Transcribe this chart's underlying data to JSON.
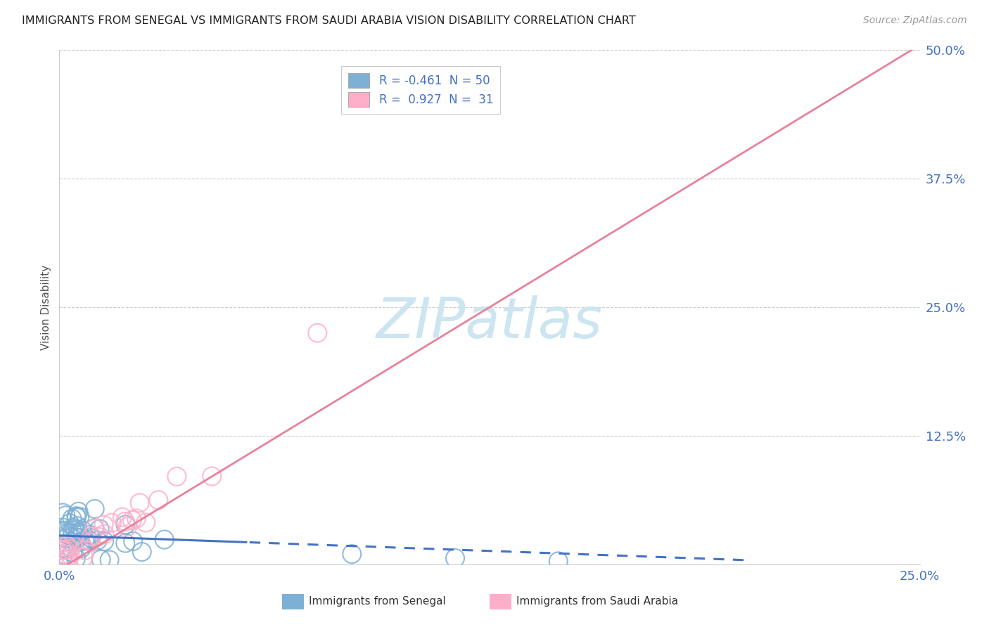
{
  "title": "IMMIGRANTS FROM SENEGAL VS IMMIGRANTS FROM SAUDI ARABIA VISION DISABILITY CORRELATION CHART",
  "source": "Source: ZipAtlas.com",
  "ylabel": "Vision Disability",
  "xlim": [
    0.0,
    0.25
  ],
  "ylim": [
    0.0,
    0.5
  ],
  "xticks": [
    0.0,
    0.05,
    0.1,
    0.15,
    0.2,
    0.25
  ],
  "yticks": [
    0.0,
    0.125,
    0.25,
    0.375,
    0.5
  ],
  "ytick_labels": [
    "",
    "12.5%",
    "25.0%",
    "37.5%",
    "50.0%"
  ],
  "xtick_labels": [
    "0.0%",
    "",
    "",
    "",
    "",
    "25.0%"
  ],
  "color_senegal": "#7eb0d5",
  "color_saudi": "#ffaec9",
  "color_senegal_line": "#4472c4",
  "color_saudi_line": "#e8819a",
  "R_senegal": -0.461,
  "N_senegal": 50,
  "R_saudi": 0.927,
  "N_saudi": 31,
  "watermark": "ZIPatlas",
  "watermark_color": "#cce5f0",
  "grid_color": "#cccccc",
  "background_color": "#ffffff",
  "tick_color": "#4472c4",
  "title_fontsize": 11.5,
  "legend_fontsize": 12,
  "axis_label_color": "#555555",
  "source_color": "#999999"
}
